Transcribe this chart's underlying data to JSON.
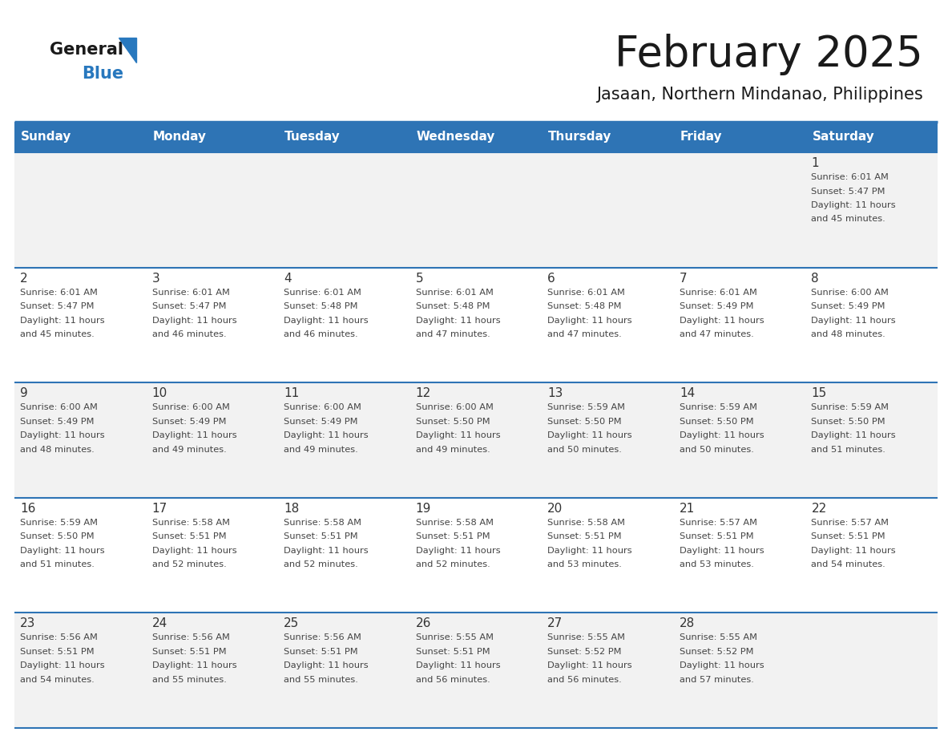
{
  "title": "February 2025",
  "subtitle": "Jasaan, Northern Mindanao, Philippines",
  "days_of_week": [
    "Sunday",
    "Monday",
    "Tuesday",
    "Wednesday",
    "Thursday",
    "Friday",
    "Saturday"
  ],
  "header_bg": "#2E74B5",
  "header_text": "#FFFFFF",
  "cell_bg_odd": "#F2F2F2",
  "cell_bg_even": "#FFFFFF",
  "separator_color": "#2E74B5",
  "day_number_color": "#333333",
  "text_color": "#444444",
  "logo_general_color": "#1A1A1A",
  "logo_blue_color": "#2878BE",
  "calendar_data": [
    {
      "day": 1,
      "col": 6,
      "row": 0,
      "sunrise": "6:01 AM",
      "sunset": "5:47 PM",
      "daylight_hours": 11,
      "daylight_minutes": 45
    },
    {
      "day": 2,
      "col": 0,
      "row": 1,
      "sunrise": "6:01 AM",
      "sunset": "5:47 PM",
      "daylight_hours": 11,
      "daylight_minutes": 45
    },
    {
      "day": 3,
      "col": 1,
      "row": 1,
      "sunrise": "6:01 AM",
      "sunset": "5:47 PM",
      "daylight_hours": 11,
      "daylight_minutes": 46
    },
    {
      "day": 4,
      "col": 2,
      "row": 1,
      "sunrise": "6:01 AM",
      "sunset": "5:48 PM",
      "daylight_hours": 11,
      "daylight_minutes": 46
    },
    {
      "day": 5,
      "col": 3,
      "row": 1,
      "sunrise": "6:01 AM",
      "sunset": "5:48 PM",
      "daylight_hours": 11,
      "daylight_minutes": 47
    },
    {
      "day": 6,
      "col": 4,
      "row": 1,
      "sunrise": "6:01 AM",
      "sunset": "5:48 PM",
      "daylight_hours": 11,
      "daylight_minutes": 47
    },
    {
      "day": 7,
      "col": 5,
      "row": 1,
      "sunrise": "6:01 AM",
      "sunset": "5:49 PM",
      "daylight_hours": 11,
      "daylight_minutes": 47
    },
    {
      "day": 8,
      "col": 6,
      "row": 1,
      "sunrise": "6:00 AM",
      "sunset": "5:49 PM",
      "daylight_hours": 11,
      "daylight_minutes": 48
    },
    {
      "day": 9,
      "col": 0,
      "row": 2,
      "sunrise": "6:00 AM",
      "sunset": "5:49 PM",
      "daylight_hours": 11,
      "daylight_minutes": 48
    },
    {
      "day": 10,
      "col": 1,
      "row": 2,
      "sunrise": "6:00 AM",
      "sunset": "5:49 PM",
      "daylight_hours": 11,
      "daylight_minutes": 49
    },
    {
      "day": 11,
      "col": 2,
      "row": 2,
      "sunrise": "6:00 AM",
      "sunset": "5:49 PM",
      "daylight_hours": 11,
      "daylight_minutes": 49
    },
    {
      "day": 12,
      "col": 3,
      "row": 2,
      "sunrise": "6:00 AM",
      "sunset": "5:50 PM",
      "daylight_hours": 11,
      "daylight_minutes": 49
    },
    {
      "day": 13,
      "col": 4,
      "row": 2,
      "sunrise": "5:59 AM",
      "sunset": "5:50 PM",
      "daylight_hours": 11,
      "daylight_minutes": 50
    },
    {
      "day": 14,
      "col": 5,
      "row": 2,
      "sunrise": "5:59 AM",
      "sunset": "5:50 PM",
      "daylight_hours": 11,
      "daylight_minutes": 50
    },
    {
      "day": 15,
      "col": 6,
      "row": 2,
      "sunrise": "5:59 AM",
      "sunset": "5:50 PM",
      "daylight_hours": 11,
      "daylight_minutes": 51
    },
    {
      "day": 16,
      "col": 0,
      "row": 3,
      "sunrise": "5:59 AM",
      "sunset": "5:50 PM",
      "daylight_hours": 11,
      "daylight_minutes": 51
    },
    {
      "day": 17,
      "col": 1,
      "row": 3,
      "sunrise": "5:58 AM",
      "sunset": "5:51 PM",
      "daylight_hours": 11,
      "daylight_minutes": 52
    },
    {
      "day": 18,
      "col": 2,
      "row": 3,
      "sunrise": "5:58 AM",
      "sunset": "5:51 PM",
      "daylight_hours": 11,
      "daylight_minutes": 52
    },
    {
      "day": 19,
      "col": 3,
      "row": 3,
      "sunrise": "5:58 AM",
      "sunset": "5:51 PM",
      "daylight_hours": 11,
      "daylight_minutes": 52
    },
    {
      "day": 20,
      "col": 4,
      "row": 3,
      "sunrise": "5:58 AM",
      "sunset": "5:51 PM",
      "daylight_hours": 11,
      "daylight_minutes": 53
    },
    {
      "day": 21,
      "col": 5,
      "row": 3,
      "sunrise": "5:57 AM",
      "sunset": "5:51 PM",
      "daylight_hours": 11,
      "daylight_minutes": 53
    },
    {
      "day": 22,
      "col": 6,
      "row": 3,
      "sunrise": "5:57 AM",
      "sunset": "5:51 PM",
      "daylight_hours": 11,
      "daylight_minutes": 54
    },
    {
      "day": 23,
      "col": 0,
      "row": 4,
      "sunrise": "5:56 AM",
      "sunset": "5:51 PM",
      "daylight_hours": 11,
      "daylight_minutes": 54
    },
    {
      "day": 24,
      "col": 1,
      "row": 4,
      "sunrise": "5:56 AM",
      "sunset": "5:51 PM",
      "daylight_hours": 11,
      "daylight_minutes": 55
    },
    {
      "day": 25,
      "col": 2,
      "row": 4,
      "sunrise": "5:56 AM",
      "sunset": "5:51 PM",
      "daylight_hours": 11,
      "daylight_minutes": 55
    },
    {
      "day": 26,
      "col": 3,
      "row": 4,
      "sunrise": "5:55 AM",
      "sunset": "5:51 PM",
      "daylight_hours": 11,
      "daylight_minutes": 56
    },
    {
      "day": 27,
      "col": 4,
      "row": 4,
      "sunrise": "5:55 AM",
      "sunset": "5:52 PM",
      "daylight_hours": 11,
      "daylight_minutes": 56
    },
    {
      "day": 28,
      "col": 5,
      "row": 4,
      "sunrise": "5:55 AM",
      "sunset": "5:52 PM",
      "daylight_hours": 11,
      "daylight_minutes": 57
    }
  ]
}
